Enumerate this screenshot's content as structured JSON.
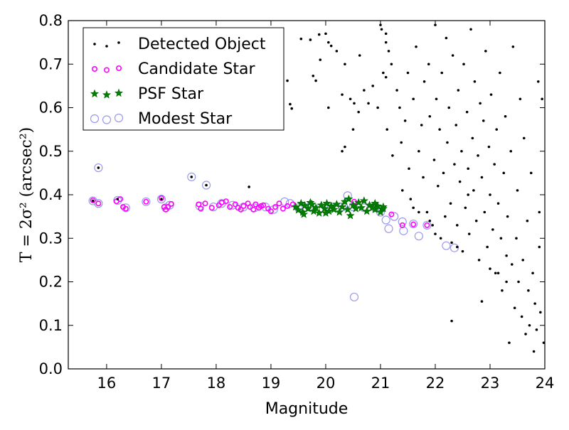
{
  "chart_data": {
    "type": "scatter",
    "xlabel": "Magnitude",
    "ylabel": "T = 2σ² (arcsec²)",
    "xlim": [
      15.3,
      24
    ],
    "ylim": [
      0.0,
      0.8
    ],
    "xticks": [
      "16",
      "17",
      "18",
      "19",
      "20",
      "21",
      "22",
      "23",
      "24"
    ],
    "yticks": [
      "0.0",
      "0.1",
      "0.2",
      "0.3",
      "0.4",
      "0.5",
      "0.6",
      "0.7",
      "0.8"
    ],
    "legend_position": "top-left",
    "grid": false,
    "series": [
      {
        "name": "Detected Object",
        "marker": "dot",
        "color": "#000000",
        "points": [
          [
            15.85,
            0.462
          ],
          [
            17.55,
            0.441
          ],
          [
            17.82,
            0.422
          ],
          [
            18.6,
            0.418
          ],
          [
            15.75,
            0.386
          ],
          [
            16.2,
            0.39
          ],
          [
            17.0,
            0.39
          ],
          [
            19.3,
            0.662
          ],
          [
            19.35,
            0.608
          ],
          [
            19.38,
            0.598
          ],
          [
            19.55,
            0.758
          ],
          [
            19.72,
            0.756
          ],
          [
            19.77,
            0.673
          ],
          [
            19.82,
            0.662
          ],
          [
            19.88,
            0.768
          ],
          [
            20.0,
            0.77
          ],
          [
            20.1,
            0.742
          ],
          [
            20.2,
            0.73
          ],
          [
            20.35,
            0.7
          ],
          [
            20.45,
            0.62
          ],
          [
            20.52,
            0.61
          ],
          [
            19.9,
            0.71
          ],
          [
            20.05,
            0.75
          ],
          [
            20.3,
            0.63
          ],
          [
            20.3,
            0.5
          ],
          [
            20.35,
            0.51
          ],
          [
            20.05,
            0.6
          ],
          [
            20.5,
            0.55
          ],
          [
            20.6,
            0.59
          ],
          [
            20.62,
            0.72
          ],
          [
            20.7,
            0.64
          ],
          [
            20.78,
            0.61
          ],
          [
            20.86,
            0.65
          ],
          [
            20.95,
            0.6
          ],
          [
            21.0,
            0.79
          ],
          [
            21.05,
            0.68
          ],
          [
            21.02,
            0.78
          ],
          [
            21.1,
            0.75
          ],
          [
            21.1,
            0.77
          ],
          [
            21.1,
            0.67
          ],
          [
            21.12,
            0.55
          ],
          [
            21.15,
            0.73
          ],
          [
            21.2,
            0.7
          ],
          [
            21.22,
            0.49
          ],
          [
            21.3,
            0.64
          ],
          [
            21.35,
            0.6
          ],
          [
            21.38,
            0.52
          ],
          [
            21.4,
            0.41
          ],
          [
            21.45,
            0.57
          ],
          [
            21.5,
            0.68
          ],
          [
            21.52,
            0.46
          ],
          [
            21.55,
            0.39
          ],
          [
            21.6,
            0.62
          ],
          [
            21.65,
            0.74
          ],
          [
            21.7,
            0.5
          ],
          [
            21.75,
            0.56
          ],
          [
            21.78,
            0.44
          ],
          [
            21.8,
            0.66
          ],
          [
            21.85,
            0.36
          ],
          [
            21.88,
            0.7
          ],
          [
            21.9,
            0.58
          ],
          [
            21.95,
            0.33
          ],
          [
            21.98,
            0.48
          ],
          [
            22.0,
            0.79
          ],
          [
            22.02,
            0.62
          ],
          [
            22.05,
            0.42
          ],
          [
            22.08,
            0.55
          ],
          [
            22.1,
            0.3
          ],
          [
            22.12,
            0.68
          ],
          [
            22.15,
            0.45
          ],
          [
            22.18,
            0.35
          ],
          [
            22.2,
            0.76
          ],
          [
            22.22,
            0.52
          ],
          [
            22.25,
            0.6
          ],
          [
            22.28,
            0.38
          ],
          [
            22.3,
            0.29
          ],
          [
            22.32,
            0.72
          ],
          [
            22.35,
            0.47
          ],
          [
            22.38,
            0.56
          ],
          [
            22.4,
            0.33
          ],
          [
            22.42,
            0.64
          ],
          [
            22.45,
            0.43
          ],
          [
            22.48,
            0.5
          ],
          [
            22.5,
            0.27
          ],
          [
            22.52,
            0.7
          ],
          [
            22.55,
            0.37
          ],
          [
            22.58,
            0.59
          ],
          [
            22.6,
            0.46
          ],
          [
            22.62,
            0.31
          ],
          [
            22.65,
            0.78
          ],
          [
            22.68,
            0.53
          ],
          [
            22.7,
            0.41
          ],
          [
            22.72,
            0.66
          ],
          [
            22.75,
            0.34
          ],
          [
            22.78,
            0.49
          ],
          [
            22.8,
            0.25
          ],
          [
            22.82,
            0.61
          ],
          [
            22.85,
            0.44
          ],
          [
            22.88,
            0.57
          ],
          [
            22.9,
            0.36
          ],
          [
            22.92,
            0.73
          ],
          [
            22.95,
            0.28
          ],
          [
            22.98,
            0.51
          ],
          [
            23.0,
            0.4
          ],
          [
            23.02,
            0.63
          ],
          [
            23.05,
            0.32
          ],
          [
            23.08,
            0.47
          ],
          [
            23.1,
            0.22
          ],
          [
            23.12,
            0.55
          ],
          [
            23.15,
            0.38
          ],
          [
            23.18,
            0.68
          ],
          [
            23.2,
            0.3
          ],
          [
            23.22,
            0.18
          ],
          [
            23.25,
            0.45
          ],
          [
            23.28,
            0.58
          ],
          [
            23.3,
            0.26
          ],
          [
            23.32,
            0.35
          ],
          [
            23.35,
            0.06
          ],
          [
            23.38,
            0.5
          ],
          [
            23.4,
            0.24
          ],
          [
            23.42,
            0.74
          ],
          [
            23.45,
            0.14
          ],
          [
            23.48,
            0.3
          ],
          [
            23.5,
            0.41
          ],
          [
            23.52,
            0.2
          ],
          [
            23.55,
            0.62
          ],
          [
            23.58,
            0.12
          ],
          [
            23.6,
            0.25
          ],
          [
            23.62,
            0.53
          ],
          [
            23.65,
            0.08
          ],
          [
            23.68,
            0.34
          ],
          [
            23.7,
            0.18
          ],
          [
            23.72,
            0.1
          ],
          [
            23.75,
            0.45
          ],
          [
            23.78,
            0.22
          ],
          [
            23.8,
            0.04
          ],
          [
            23.82,
            0.15
          ],
          [
            23.85,
            0.09
          ],
          [
            23.88,
            0.66
          ],
          [
            23.9,
            0.28
          ],
          [
            23.92,
            0.13
          ],
          [
            23.95,
            0.62
          ],
          [
            23.98,
            0.06
          ],
          [
            22.3,
            0.11
          ],
          [
            22.85,
            0.155
          ],
          [
            23.9,
            0.36
          ],
          [
            21.6,
            0.37
          ],
          [
            21.7,
            0.36
          ],
          [
            22.6,
            0.4
          ],
          [
            22.0,
            0.31
          ],
          [
            21.9,
            0.34
          ],
          [
            22.4,
            0.28
          ],
          [
            23.3,
            0.2
          ],
          [
            23.15,
            0.22
          ],
          [
            23.0,
            0.23
          ]
        ]
      },
      {
        "name": "Candidate Star",
        "marker": "circle",
        "color": "#ff00ff",
        "points": [
          [
            15.75,
            0.387
          ],
          [
            15.85,
            0.38
          ],
          [
            16.18,
            0.385
          ],
          [
            16.25,
            0.39
          ],
          [
            16.3,
            0.372
          ],
          [
            16.35,
            0.368
          ],
          [
            16.72,
            0.384
          ],
          [
            17.0,
            0.392
          ],
          [
            17.05,
            0.372
          ],
          [
            17.08,
            0.366
          ],
          [
            17.12,
            0.372
          ],
          [
            17.18,
            0.379
          ],
          [
            17.68,
            0.378
          ],
          [
            17.72,
            0.368
          ],
          [
            17.8,
            0.38
          ],
          [
            17.92,
            0.37
          ],
          [
            18.05,
            0.376
          ],
          [
            18.1,
            0.382
          ],
          [
            18.18,
            0.385
          ],
          [
            18.25,
            0.372
          ],
          [
            18.35,
            0.378
          ],
          [
            18.4,
            0.37
          ],
          [
            18.45,
            0.366
          ],
          [
            18.5,
            0.374
          ],
          [
            18.58,
            0.38
          ],
          [
            18.62,
            0.372
          ],
          [
            18.68,
            0.366
          ],
          [
            18.72,
            0.378
          ],
          [
            18.78,
            0.37
          ],
          [
            18.82,
            0.374
          ],
          [
            18.86,
            0.376
          ],
          [
            18.95,
            0.368
          ],
          [
            19.0,
            0.362
          ],
          [
            19.08,
            0.372
          ],
          [
            19.15,
            0.38
          ],
          [
            19.22,
            0.368
          ],
          [
            19.3,
            0.374
          ],
          [
            19.4,
            0.378
          ],
          [
            20.52,
            0.384
          ],
          [
            21.2,
            0.355
          ],
          [
            21.4,
            0.33
          ],
          [
            21.6,
            0.332
          ],
          [
            21.85,
            0.33
          ]
        ]
      },
      {
        "name": "PSF Star",
        "marker": "star",
        "color": "#008000",
        "points": [
          [
            19.45,
            0.372
          ],
          [
            19.5,
            0.365
          ],
          [
            19.55,
            0.38
          ],
          [
            19.58,
            0.36
          ],
          [
            19.62,
            0.375
          ],
          [
            19.68,
            0.368
          ],
          [
            19.72,
            0.382
          ],
          [
            19.78,
            0.362
          ],
          [
            19.82,
            0.37
          ],
          [
            19.88,
            0.358
          ],
          [
            19.92,
            0.376
          ],
          [
            19.98,
            0.368
          ],
          [
            20.02,
            0.38
          ],
          [
            20.06,
            0.362
          ],
          [
            20.1,
            0.374
          ],
          [
            20.15,
            0.366
          ],
          [
            20.2,
            0.378
          ],
          [
            20.25,
            0.36
          ],
          [
            20.3,
            0.372
          ],
          [
            20.35,
            0.384
          ],
          [
            20.4,
            0.366
          ],
          [
            20.45,
            0.352
          ],
          [
            20.5,
            0.376
          ],
          [
            20.55,
            0.368
          ],
          [
            20.6,
            0.382
          ],
          [
            20.65,
            0.37
          ],
          [
            20.7,
            0.386
          ],
          [
            20.75,
            0.362
          ],
          [
            20.8,
            0.376
          ],
          [
            20.85,
            0.37
          ],
          [
            20.9,
            0.366
          ],
          [
            20.95,
            0.374
          ],
          [
            21.0,
            0.36
          ],
          [
            21.05,
            0.368
          ],
          [
            19.6,
            0.355
          ],
          [
            20.0,
            0.358
          ],
          [
            20.42,
            0.39
          ],
          [
            20.9,
            0.38
          ],
          [
            21.05,
            0.372
          ],
          [
            19.75,
            0.378
          ]
        ]
      },
      {
        "name": "Modest Star",
        "marker": "open-circle",
        "color": "#9999ee",
        "points": [
          [
            15.85,
            0.462
          ],
          [
            17.55,
            0.441
          ],
          [
            17.82,
            0.422
          ],
          [
            15.75,
            0.386
          ],
          [
            15.85,
            0.38
          ],
          [
            16.2,
            0.387
          ],
          [
            16.35,
            0.37
          ],
          [
            16.72,
            0.384
          ],
          [
            17.0,
            0.39
          ],
          [
            17.08,
            0.37
          ],
          [
            17.15,
            0.376
          ],
          [
            17.7,
            0.374
          ],
          [
            17.95,
            0.372
          ],
          [
            18.1,
            0.38
          ],
          [
            18.3,
            0.376
          ],
          [
            18.5,
            0.372
          ],
          [
            18.7,
            0.37
          ],
          [
            18.9,
            0.372
          ],
          [
            19.05,
            0.366
          ],
          [
            19.25,
            0.384
          ],
          [
            19.35,
            0.38
          ],
          [
            19.5,
            0.37
          ],
          [
            19.7,
            0.372
          ],
          [
            19.9,
            0.37
          ],
          [
            20.1,
            0.372
          ],
          [
            20.3,
            0.372
          ],
          [
            20.4,
            0.398
          ],
          [
            20.5,
            0.372
          ],
          [
            20.52,
            0.165
          ],
          [
            20.7,
            0.37
          ],
          [
            20.9,
            0.37
          ],
          [
            21.0,
            0.36
          ],
          [
            21.1,
            0.342
          ],
          [
            21.15,
            0.322
          ],
          [
            21.25,
            0.35
          ],
          [
            21.4,
            0.338
          ],
          [
            21.42,
            0.317
          ],
          [
            21.6,
            0.333
          ],
          [
            21.7,
            0.305
          ],
          [
            21.85,
            0.33
          ],
          [
            22.2,
            0.283
          ],
          [
            22.35,
            0.278
          ]
        ]
      }
    ]
  }
}
